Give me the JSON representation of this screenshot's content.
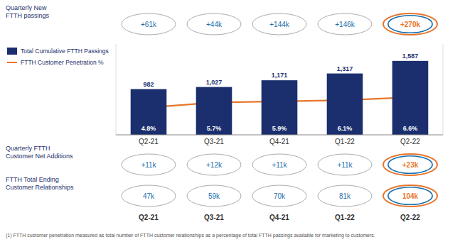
{
  "chart_data": {
    "type": "bar",
    "categories": [
      "Q2-21",
      "Q3-21",
      "Q4-21",
      "Q1-22",
      "Q2-22"
    ],
    "series": [
      {
        "name": "Total Cumulative FTTH Passings",
        "type": "bar",
        "color": "#1b2f6e",
        "values": [
          982,
          1027,
          1171,
          1317,
          1587
        ],
        "value_labels": [
          "982",
          "1,027",
          "1,171",
          "1,317",
          "1,587"
        ]
      },
      {
        "name": "FTTH Customer Penetration %",
        "type": "line",
        "color": "#e8752a",
        "axis": "y2",
        "values": [
          4.8,
          5.7,
          5.9,
          6.1,
          6.6
        ],
        "value_labels": [
          "4.8%",
          "5.7%",
          "5.9%",
          "6.1%",
          "6.6%"
        ]
      }
    ],
    "ylim": [
      0,
      1950
    ],
    "y2lim": [
      0,
      16
    ],
    "tick_labels": "x",
    "data_labels": true,
    "legend": "upper left",
    "annotations": [
      {
        "text": "Quarterly New\nFTTH passings",
        "values": [
          61000,
          44000,
          144000,
          146000,
          270000
        ],
        "value_labels": [
          "+61k",
          "+44k",
          "+144k",
          "+146k",
          "+270k"
        ],
        "colors": [
          "#aaaaaa",
          "#aaaaaa",
          "#aaaaaa",
          "#aaaaaa",
          "#e8752a"
        ]
      },
      {
        "text": "Quarterly FTTH\nCustomer Net Additions",
        "values": [
          11000,
          12000,
          11000,
          11000,
          23000
        ],
        "value_labels": [
          "+11k",
          "+12k",
          "+11k",
          "+11k",
          "+23k"
        ],
        "colors": [
          "#aaaaaa",
          "#aaaaaa",
          "#aaaaaa",
          "#aaaaaa",
          "#e8752a"
        ]
      },
      {
        "text": "FTTH Total Ending\nCustomer Relationships",
        "values": [
          47000,
          59000,
          70000,
          81000,
          104000
        ],
        "value_labels": [
          "47k",
          "59k",
          "70k",
          "81k",
          "104k"
        ],
        "colors": [
          "#aaaaaa",
          "#aaaaaa",
          "#aaaaaa",
          "#aaaaaa",
          "#e8752a"
        ]
      },
      {
        "text": "(1)  FTTH customer penetration measured as total number of FTTH customer relationships as a percentage of total FTTH passings available for marketing to customers."
      }
    ]
  }
}
